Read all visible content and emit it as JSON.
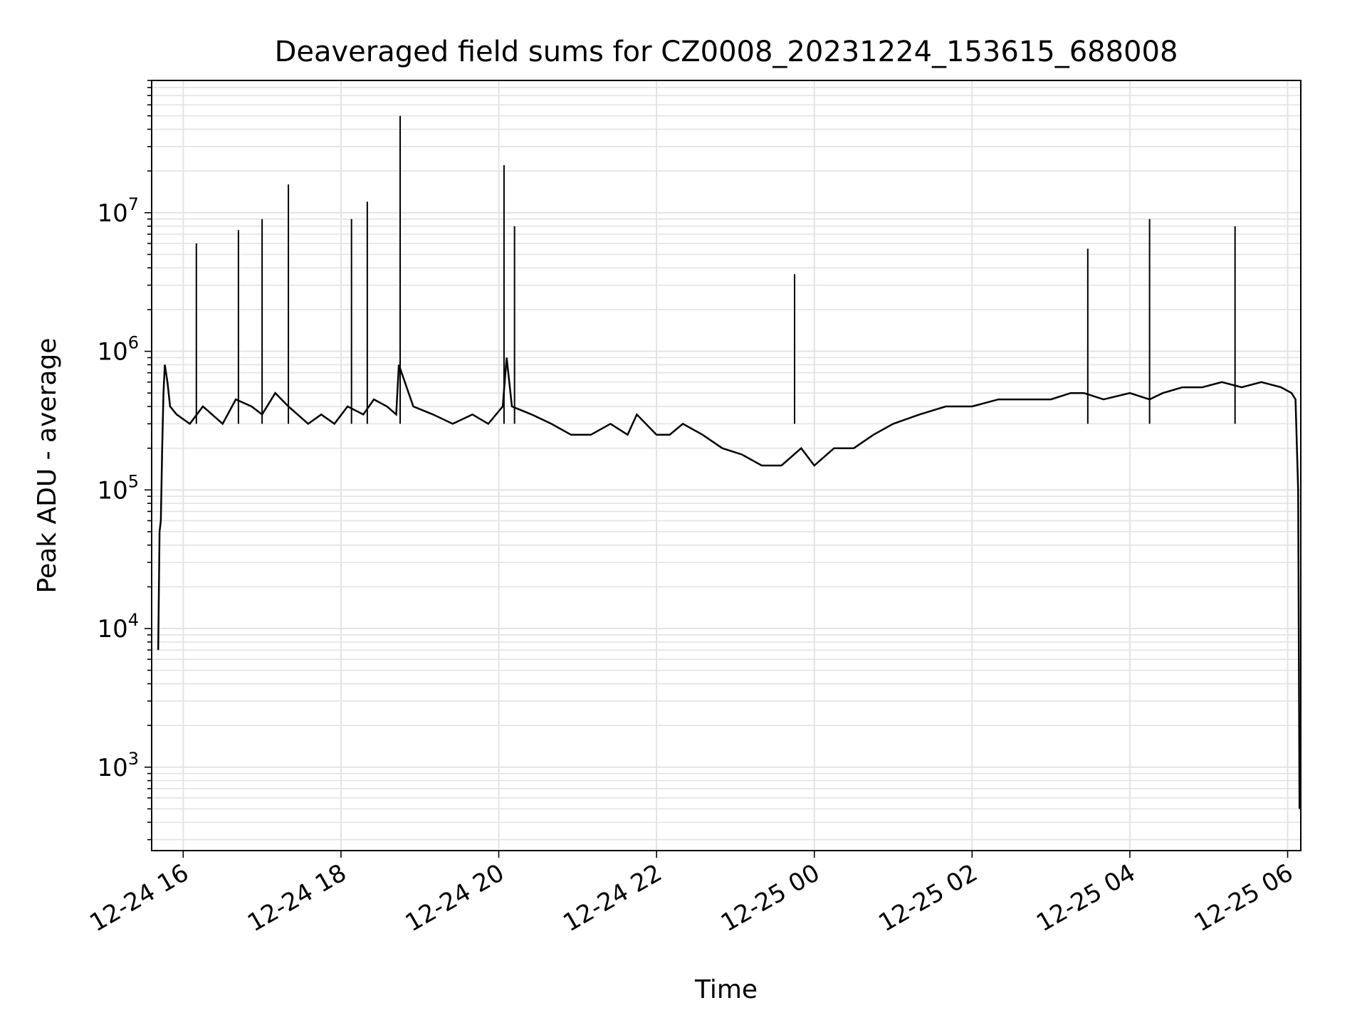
{
  "chart_data": {
    "type": "line",
    "title": "Deaveraged field sums for CZ0008_20231224_153615_688008",
    "xlabel": "Time",
    "ylabel": "Peak ADU - average",
    "yscale": "log",
    "ylim": [
      250,
      90000000
    ],
    "xlim": [
      "2023-12-24 15:36",
      "2023-12-25 06:10"
    ],
    "grid": true,
    "x_ticks": [
      {
        "t": "2023-12-24 16:00",
        "label": "12-24 16"
      },
      {
        "t": "2023-12-24 18:00",
        "label": "12-24 18"
      },
      {
        "t": "2023-12-24 20:00",
        "label": "12-24 20"
      },
      {
        "t": "2023-12-24 22:00",
        "label": "12-24 22"
      },
      {
        "t": "2023-12-25 00:00",
        "label": "12-25 00"
      },
      {
        "t": "2023-12-25 02:00",
        "label": "12-25 02"
      },
      {
        "t": "2023-12-25 04:00",
        "label": "12-25 04"
      },
      {
        "t": "2023-12-25 06:00",
        "label": "12-25 06"
      }
    ],
    "y_ticks": [
      {
        "value": 1000,
        "base": "10",
        "exp": "3"
      },
      {
        "value": 10000,
        "base": "10",
        "exp": "4"
      },
      {
        "value": 100000,
        "base": "10",
        "exp": "5"
      },
      {
        "value": 1000000,
        "base": "10",
        "exp": "6"
      },
      {
        "value": 10000000,
        "base": "10",
        "exp": "7"
      }
    ],
    "series": [
      {
        "color": "#000000",
        "x": [
          "2023-12-24 15:41",
          "2023-12-24 15:42",
          "2023-12-24 15:43",
          "2023-12-24 15:44",
          "2023-12-24 15:45",
          "2023-12-24 15:46",
          "2023-12-24 15:48",
          "2023-12-24 15:50",
          "2023-12-24 15:55",
          "2023-12-24 16:05",
          "2023-12-24 16:15",
          "2023-12-24 16:22",
          "2023-12-24 16:30",
          "2023-12-24 16:40",
          "2023-12-24 16:52",
          "2023-12-24 17:00",
          "2023-12-24 17:10",
          "2023-12-24 17:20",
          "2023-12-24 17:35",
          "2023-12-24 17:45",
          "2023-12-24 17:55",
          "2023-12-24 18:05",
          "2023-12-24 18:17",
          "2023-12-24 18:25",
          "2023-12-24 18:35",
          "2023-12-24 18:42",
          "2023-12-24 18:44",
          "2023-12-24 18:55",
          "2023-12-24 19:10",
          "2023-12-24 19:25",
          "2023-12-24 19:40",
          "2023-12-24 19:52",
          "2023-12-24 20:03",
          "2023-12-24 20:06",
          "2023-12-24 20:10",
          "2023-12-24 20:25",
          "2023-12-24 20:40",
          "2023-12-24 20:55",
          "2023-12-24 21:10",
          "2023-12-24 21:25",
          "2023-12-24 21:38",
          "2023-12-24 21:45",
          "2023-12-24 22:00",
          "2023-12-24 22:10",
          "2023-12-24 22:20",
          "2023-12-24 22:35",
          "2023-12-24 22:50",
          "2023-12-24 23:05",
          "2023-12-24 23:20",
          "2023-12-24 23:35",
          "2023-12-24 23:50",
          "2023-12-25 00:00",
          "2023-12-25 00:15",
          "2023-12-25 00:30",
          "2023-12-25 00:45",
          "2023-12-25 01:00",
          "2023-12-25 01:20",
          "2023-12-25 01:40",
          "2023-12-25 02:00",
          "2023-12-25 02:20",
          "2023-12-25 02:40",
          "2023-12-25 03:00",
          "2023-12-25 03:15",
          "2023-12-25 03:25",
          "2023-12-25 03:40",
          "2023-12-25 04:00",
          "2023-12-25 04:15",
          "2023-12-25 04:25",
          "2023-12-25 04:40",
          "2023-12-25 04:55",
          "2023-12-25 05:10",
          "2023-12-25 05:25",
          "2023-12-25 05:40",
          "2023-12-25 05:55",
          "2023-12-25 06:03",
          "2023-12-25 06:06",
          "2023-12-25 06:08",
          "2023-12-25 06:09"
        ],
        "y": [
          7000,
          50000,
          60000,
          200000,
          500000,
          800000,
          600000,
          400000,
          350000,
          300000,
          400000,
          350000,
          300000,
          450000,
          400000,
          350000,
          500000,
          400000,
          300000,
          350000,
          300000,
          400000,
          350000,
          450000,
          400000,
          350000,
          800000,
          400000,
          350000,
          300000,
          350000,
          300000,
          400000,
          900000,
          400000,
          350000,
          300000,
          250000,
          250000,
          300000,
          250000,
          350000,
          250000,
          250000,
          300000,
          250000,
          200000,
          180000,
          150000,
          150000,
          200000,
          150000,
          200000,
          200000,
          250000,
          300000,
          350000,
          400000,
          400000,
          450000,
          450000,
          450000,
          500000,
          500000,
          450000,
          500000,
          450000,
          500000,
          550000,
          550000,
          600000,
          550000,
          600000,
          550000,
          500000,
          450000,
          100000,
          500
        ]
      }
    ],
    "spikes": [
      {
        "x": "2023-12-24 16:10",
        "y": 6000000
      },
      {
        "x": "2023-12-24 16:42",
        "y": 7500000
      },
      {
        "x": "2023-12-24 17:00",
        "y": 9000000
      },
      {
        "x": "2023-12-24 17:20",
        "y": 16000000
      },
      {
        "x": "2023-12-24 18:08",
        "y": 9000000
      },
      {
        "x": "2023-12-24 18:20",
        "y": 12000000
      },
      {
        "x": "2023-12-24 18:45",
        "y": 50000000
      },
      {
        "x": "2023-12-24 20:04",
        "y": 22000000
      },
      {
        "x": "2023-12-24 20:12",
        "y": 8000000
      },
      {
        "x": "2023-12-24 23:45",
        "y": 3600000
      },
      {
        "x": "2023-12-25 03:28",
        "y": 5500000
      },
      {
        "x": "2023-12-25 04:15",
        "y": 9000000
      },
      {
        "x": "2023-12-25 05:20",
        "y": 8000000
      }
    ]
  }
}
